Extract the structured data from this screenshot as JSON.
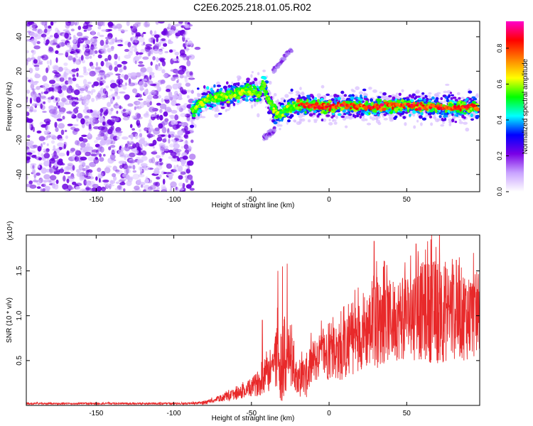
{
  "figure_title": "C2E6.2025.218.01.05.R02",
  "chart_data": [
    {
      "type": "heatmap",
      "title": "C2E6.2025.218.01.05.R02",
      "xlabel": "Height of straight line (km)",
      "ylabel": "Frequency (Hz)",
      "xlim": [
        -195,
        97
      ],
      "ylim": [
        -50,
        49
      ],
      "xticks": [
        -150,
        -100,
        -50,
        0,
        50
      ],
      "yticks": [
        -40,
        -20,
        0,
        20,
        40
      ],
      "colorbar": {
        "label": "Normalized spectral amplitude",
        "range": [
          0.0,
          0.95
        ],
        "ticks": [
          "0.0",
          "0.2",
          "0.4",
          "0.6",
          "0.8"
        ],
        "colors": [
          "#ffffff",
          "#c9a3ff",
          "#7a00e6",
          "#0000ff",
          "#00ffff",
          "#00ff00",
          "#ffff00",
          "#ff8000",
          "#ff0000",
          "#ff00cc"
        ]
      },
      "regions": [
        {
          "name": "noise",
          "x_range": [
            -195,
            -88
          ],
          "f_range": [
            -50,
            49
          ],
          "amplitude": 0.05
        },
        {
          "name": "ridge",
          "x_range": [
            -88,
            97
          ],
          "amplitude": 0.6
        },
        {
          "name": "upper_branch",
          "points": [
            [
              -36,
              20
            ],
            [
              -24,
              33
            ]
          ],
          "amplitude": 0.05
        },
        {
          "name": "lower_branch",
          "points": [
            [
              -42,
              -19
            ],
            [
              -35,
              -14
            ]
          ],
          "amplitude": 0.05
        }
      ],
      "ridge": {
        "x": [
          -88,
          -80,
          -70,
          -60,
          -50,
          -45,
          -42,
          -40,
          -37,
          -33,
          -30,
          -25,
          -20,
          -10,
          0,
          10,
          20,
          30,
          40,
          50,
          60,
          70,
          80,
          90,
          97
        ],
        "f": [
          -3,
          3,
          5,
          7,
          9,
          6,
          13,
          5,
          0,
          -6,
          -4,
          -1,
          0,
          0,
          -1,
          0,
          0,
          -1,
          0,
          0,
          0,
          -1,
          -1,
          -1,
          -1
        ]
      }
    },
    {
      "type": "line",
      "title": "",
      "xlabel": "Height of straight line (km)",
      "ylabel": "SNR (10 * v/v)",
      "multiplier": "(x10⁴)",
      "xlim": [
        -195,
        97
      ],
      "ylim": [
        0,
        1.9
      ],
      "xticks": [
        -150,
        -100,
        -50,
        0,
        50
      ],
      "yticks": [
        "0.5",
        "1.0",
        "1.5"
      ],
      "color": "#e8292a",
      "envelope": {
        "x": [
          -195,
          -110,
          -90,
          -80,
          -72,
          -65,
          -55,
          -48,
          -42,
          -38,
          -33,
          -30,
          -27,
          -22,
          -16,
          -10,
          0,
          10,
          20,
          30,
          40,
          50,
          60,
          70,
          80,
          90,
          97
        ],
        "mean": [
          0.02,
          0.02,
          0.02,
          0.03,
          0.07,
          0.1,
          0.15,
          0.22,
          0.3,
          0.4,
          0.55,
          0.45,
          0.6,
          0.35,
          0.28,
          0.5,
          0.58,
          0.62,
          0.8,
          0.9,
          0.95,
          1.0,
          1.05,
          1.05,
          1.05,
          1.0,
          1.0
        ],
        "spread": [
          0.01,
          0.01,
          0.01,
          0.02,
          0.03,
          0.05,
          0.08,
          0.12,
          0.18,
          0.25,
          0.4,
          0.45,
          0.55,
          0.18,
          0.25,
          0.25,
          0.3,
          0.35,
          0.4,
          0.5,
          0.45,
          0.5,
          0.55,
          0.6,
          0.55,
          0.5,
          0.45
        ]
      },
      "peaks": [
        [
          -33,
          1.5
        ],
        [
          -30,
          1.55
        ],
        [
          -27,
          1.58
        ],
        [
          -43,
          0.95
        ],
        [
          29,
          1.83
        ],
        [
          66,
          1.9
        ],
        [
          56,
          1.8
        ],
        [
          82,
          1.62
        ],
        [
          93,
          1.7
        ]
      ]
    }
  ]
}
